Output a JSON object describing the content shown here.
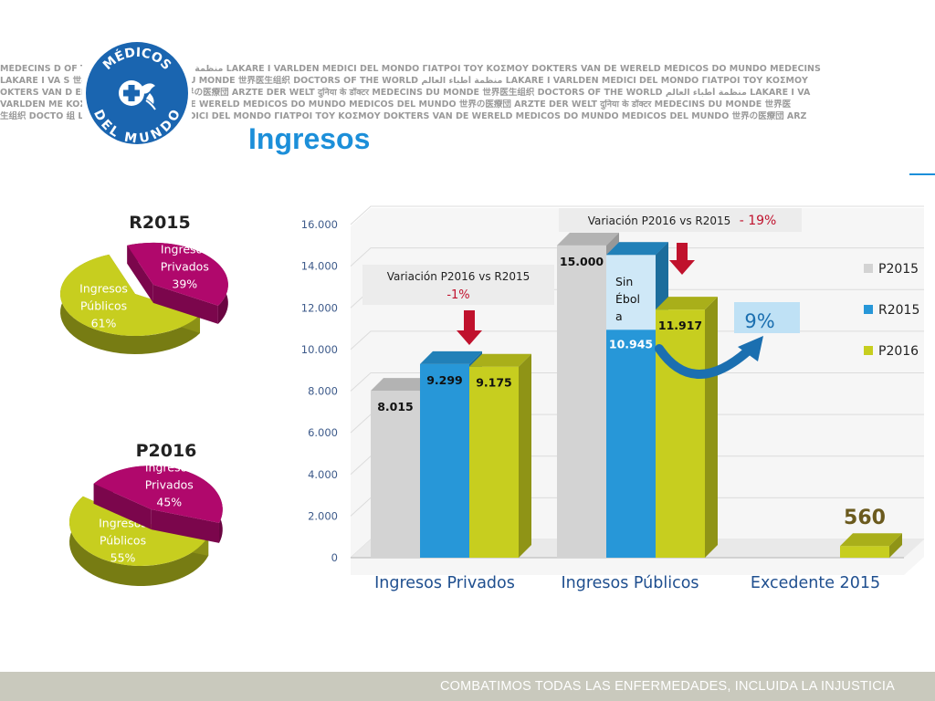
{
  "header": {
    "title": "Ingresos",
    "band_lines": [
      "MÉDECINS D                               OF THE WORLD منظمة أطباء العالم LÄKARE I VÄRLDEN MEDICI DEL MONDO ΓΙΑΤΡΟΙ ΤΟΥ ΚΟΣΜΟΥ DOKTERS VAN DE WERELD MÉDICOS DO MUNDO MÉDECINS",
      "LÄKARE I VÄ                              S 世界医生组织 MÉDECINS DU MONDE 世界医生组织 DOCTORS OF THE WORLD منظمة أطباء العالم LÄKARE I VÄRLDEN MEDICI DEL MONDO ΓΙΑΤΡΟΙ ΤΟΥ ΚΟΣΜΟΥ",
      "OKTERS VAN D                             ÉDICOS DEL MUNDO 世界の医療団 ÄRZTE DER WELT दुनिया के डॉक्टर MÉDECINS DU MONDE 世界医生组织 DOCTORS OF THE WORLD منظمة أطباء العالم LÄKARE I VÄ",
      "VÄRLDEN ME                               KOΣMOY DOKTERS VAN DE WERELD MÉDICOS DO MUNDO MÉDICOS DEL MUNDO 世界の医療団 ÄRZTE DER WELT दुनिया के डॉक्टर MÉDECINS DU MONDE 世界医",
      "生组织 DOCTO                               组 LÄKARE I VÄRLDEN MEDICI DEL MONDO ΓΙΑΤΡΟΙ ΤΟΥ ΚΟΣΜΟΥ DOKTERS VAN DE WERELD MÉDICOS DO MUNDO MÉDICOS DEL MUNDO 世界の医療団 ÄRZ"
    ],
    "logo": {
      "line1": "MÉDICOS",
      "line2": "DEL MUNDO",
      "icon": "cross-dove-icon"
    }
  },
  "footer": {
    "text": "COMBATIMOS TODAS LAS ENFERMEDADES, INCLUIDA LA INJUSTICIA"
  },
  "colors": {
    "p2015": "#d3d3d3",
    "r2015": "#2797d8",
    "p2016": "#c7ce1f",
    "pie_publicos": "#c7ce1f",
    "pie_privados": "#b0086c",
    "title": "#1c8fd9",
    "brand_blue": "#1a65b0"
  },
  "chart_data": [
    {
      "type": "bar",
      "title": "",
      "categories": [
        "Ingresos Privados",
        "Ingresos Públicos",
        "Excedente 2015"
      ],
      "series": [
        {
          "name": "P2015",
          "values": [
            8015,
            15000,
            null
          ],
          "labels": [
            "8.015",
            "15.000",
            ""
          ]
        },
        {
          "name": "R2015",
          "values": [
            9299,
            10945,
            null
          ],
          "labels": [
            "9.299",
            "10.945",
            ""
          ]
        },
        {
          "name": "P2016",
          "values": [
            9175,
            11917,
            560
          ],
          "labels": [
            "9.175",
            "11.917",
            "560"
          ]
        }
      ],
      "r2015_publicos_total": 14545,
      "yticks": [
        "0",
        "2.000",
        "4.000",
        "6.000",
        "8.000",
        "10.000",
        "12.000",
        "14.000",
        "16.000"
      ],
      "ylim": [
        0,
        16000
      ],
      "legend": {
        "position": "right",
        "items": [
          "P2015",
          "R2015",
          "P2016"
        ]
      },
      "annotations": {
        "segment_label": [
          "Sin",
          "Ébol",
          "a"
        ],
        "var_privados_text": "Variación P2016 vs R2015",
        "var_privados_pct": "-1%",
        "var_publicos_text": "Variación P2016 vs R2015",
        "var_publicos_pct": "- 19%",
        "growth_pct": "9%"
      }
    },
    {
      "type": "pie",
      "title": "R2015",
      "slices": [
        {
          "label": "Ingresos Públicos",
          "value": 61,
          "text": [
            "Ingresos",
            "Públicos",
            "61%"
          ]
        },
        {
          "label": "Ingresos Privados",
          "value": 39,
          "text": [
            "Ingresos",
            "Privados",
            "39%"
          ]
        }
      ]
    },
    {
      "type": "pie",
      "title": "P2016",
      "slices": [
        {
          "label": "Ingresos Públicos",
          "value": 55,
          "text": [
            "Ingresos",
            "Públicos",
            "55%"
          ]
        },
        {
          "label": "Ingresos Privados",
          "value": 45,
          "text": [
            "Ingresos",
            "Privados",
            "45%"
          ]
        }
      ]
    }
  ]
}
